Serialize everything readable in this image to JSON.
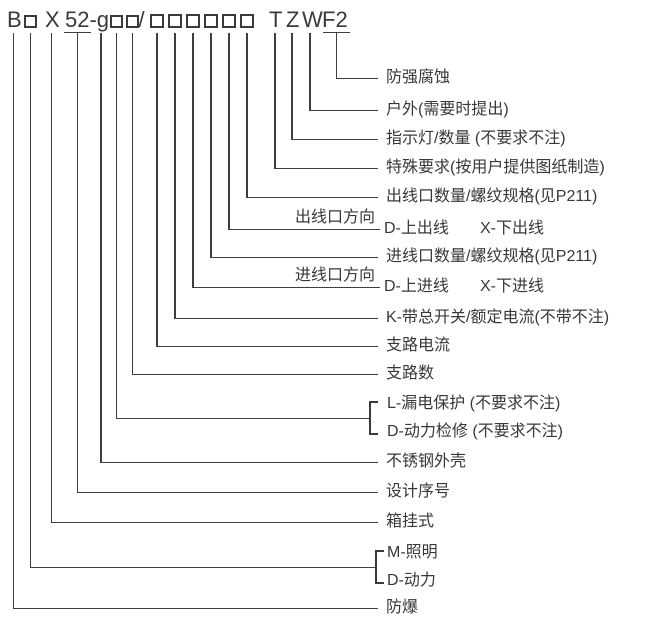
{
  "diagram": {
    "code": "B□X52-g□□/□□□□□□TZWF2",
    "code_tokens": [
      "B",
      "□",
      "X",
      "52-g",
      "□",
      "□",
      "/",
      "□",
      "□",
      "□",
      "□",
      "□",
      "□",
      "T",
      "Z",
      "W",
      "F2"
    ],
    "entries": [
      {
        "label": "防强腐蚀"
      },
      {
        "label": "户外(需要时提出)"
      },
      {
        "label": "指示灯/数量 (不要求不注)"
      },
      {
        "label": "特殊要求(按用户提供图纸制造)"
      },
      {
        "label": "出线口数量/螺纹规格(见P211)"
      },
      {
        "side_label": "出线口方向",
        "options": [
          "D-上出线",
          "X-下出线"
        ]
      },
      {
        "label": "进线口数量/螺纹规格(见P211)"
      },
      {
        "side_label": "进线口方向",
        "options": [
          "D-上进线",
          "X-下进线"
        ]
      },
      {
        "label": "K-带总开关/额定电流(不带不注)"
      },
      {
        "label": "支路电流"
      },
      {
        "label": "支路数"
      },
      {
        "bracket": [
          "L-漏电保护 (不要求不注)",
          "D-动力检修 (不要求不注)"
        ]
      },
      {
        "label": "不锈钢外壳"
      },
      {
        "label": "设计序号"
      },
      {
        "label": "箱挂式"
      },
      {
        "bracket": [
          "M-照明",
          "D-动力"
        ]
      },
      {
        "label": "防爆"
      }
    ],
    "colors": {
      "ink": "#383838",
      "line": "#3f3f3f",
      "background": "#ffffff"
    }
  }
}
